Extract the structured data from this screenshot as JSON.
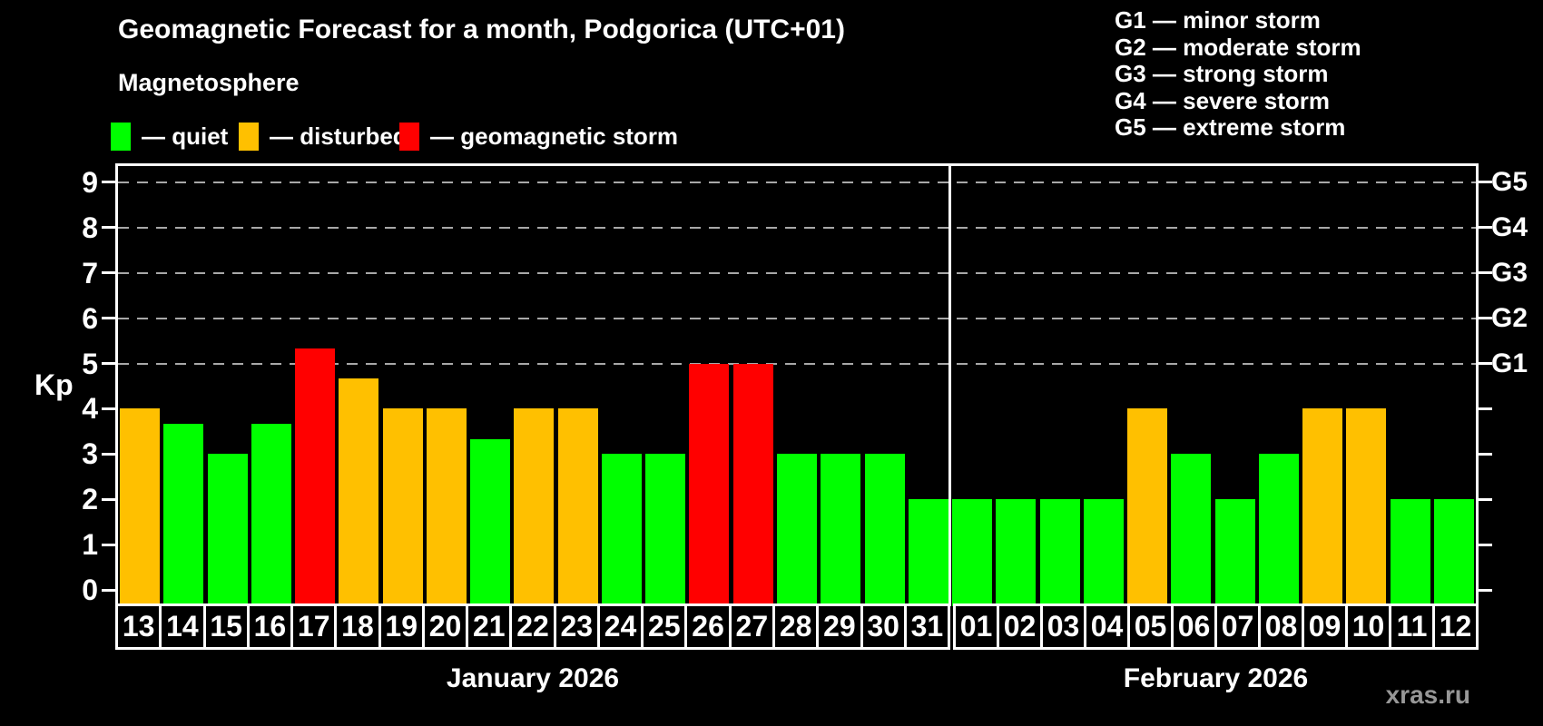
{
  "title": "Geomagnetic Forecast for a month, Podgorica (UTC+01)",
  "subtitle": "Magnetosphere",
  "legend": {
    "items": [
      {
        "key": "quiet",
        "label": "— quiet",
        "color": "#00ff00"
      },
      {
        "key": "disturbed",
        "label": "— disturbed",
        "color": "#ffc000"
      },
      {
        "key": "storm",
        "label": "— geomagnetic storm",
        "color": "#ff0000"
      }
    ]
  },
  "g_legend": [
    "G1 — minor storm",
    "G2 — moderate storm",
    "G3 — strong storm",
    "G4 — severe storm",
    "G5 — extreme storm"
  ],
  "watermark": "xras.ru",
  "chart_data": {
    "type": "bar",
    "ylabel": "Kp",
    "ylim": [
      0,
      9
    ],
    "y_ticks": [
      0,
      1,
      2,
      3,
      4,
      5,
      6,
      7,
      8,
      9
    ],
    "grid_levels": [
      5,
      6,
      7,
      8,
      9
    ],
    "grid_on": true,
    "right_axis": [
      {
        "label": "G1",
        "value": 5
      },
      {
        "label": "G2",
        "value": 6
      },
      {
        "label": "G3",
        "value": 7
      },
      {
        "label": "G4",
        "value": 8
      },
      {
        "label": "G5",
        "value": 9
      }
    ],
    "thresholds": {
      "disturbed": 4,
      "storm": 5
    },
    "status_colors": {
      "quiet": "#00ff00",
      "disturbed": "#ffc000",
      "storm": "#ff0000"
    },
    "months": [
      {
        "label": "January 2026",
        "days": [
          "13",
          "14",
          "15",
          "16",
          "17",
          "18",
          "19",
          "20",
          "21",
          "22",
          "23",
          "24",
          "25",
          "26",
          "27",
          "28",
          "29",
          "30",
          "31"
        ],
        "values": [
          4,
          3.67,
          3,
          3.67,
          5.33,
          4.67,
          4,
          4,
          3.33,
          4,
          4,
          3,
          3,
          5,
          5,
          3,
          3,
          3,
          2
        ]
      },
      {
        "label": "February 2026",
        "days": [
          "01",
          "02",
          "03",
          "04",
          "05",
          "06",
          "07",
          "08",
          "09",
          "10",
          "11",
          "12"
        ],
        "values": [
          2,
          2,
          2,
          2,
          4,
          3,
          2,
          3,
          4,
          4,
          2,
          2
        ]
      }
    ]
  }
}
